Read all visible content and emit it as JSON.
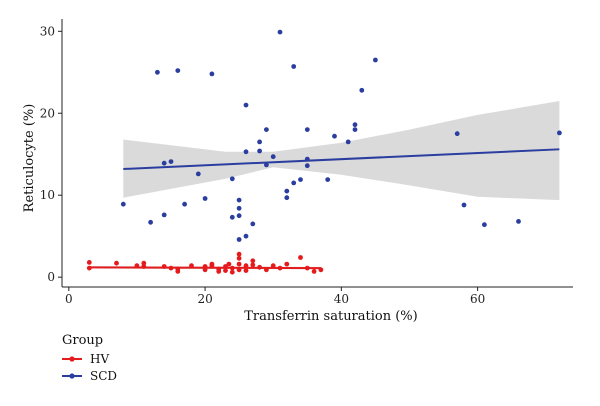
{
  "chart_data": {
    "type": "scatter",
    "xlabel": "Transferrin saturation (%)",
    "ylabel": "Reticulocyte (%)",
    "xlim": [
      -1,
      74
    ],
    "ylim": [
      -1.2,
      31.5
    ],
    "xticks": [
      0,
      20,
      40,
      60
    ],
    "yticks": [
      0,
      10,
      20,
      30
    ],
    "x_tick_labels": [
      "0",
      "20",
      "40",
      "60"
    ],
    "y_tick_labels": [
      "0",
      "10",
      "20",
      "30"
    ],
    "legend": {
      "title": "Group",
      "placement": "bottom-left"
    },
    "series": [
      {
        "name": "HV",
        "color": "#e41a1c",
        "points": [
          [
            3,
            1.1
          ],
          [
            3,
            1.8
          ],
          [
            7,
            1.7
          ],
          [
            10,
            1.4
          ],
          [
            11,
            1.3
          ],
          [
            11,
            1.7
          ],
          [
            14,
            1.3
          ],
          [
            15,
            1.1
          ],
          [
            16,
            0.7
          ],
          [
            16,
            1.0
          ],
          [
            18,
            1.4
          ],
          [
            20,
            1.3
          ],
          [
            20,
            0.9
          ],
          [
            21,
            1.4
          ],
          [
            21,
            1.6
          ],
          [
            22,
            1.0
          ],
          [
            22,
            0.7
          ],
          [
            23,
            1.3
          ],
          [
            23,
            0.8
          ],
          [
            23.5,
            1.6
          ],
          [
            24,
            1.1
          ],
          [
            24,
            0.6
          ],
          [
            25,
            0.9
          ],
          [
            25,
            1.6
          ],
          [
            25,
            2.3
          ],
          [
            25,
            2.8
          ],
          [
            26,
            1.4
          ],
          [
            26,
            0.8
          ],
          [
            27,
            2.0
          ],
          [
            27,
            1.5
          ],
          [
            28,
            1.2
          ],
          [
            29,
            0.9
          ],
          [
            30,
            1.4
          ],
          [
            31,
            1.1
          ],
          [
            32,
            1.6
          ],
          [
            34,
            2.4
          ],
          [
            35,
            1.1
          ],
          [
            36,
            0.7
          ],
          [
            37,
            0.9
          ]
        ],
        "fit": {
          "x_range": [
            3,
            37
          ],
          "y_start": 1.2,
          "y_end": 1.1,
          "ci": 0.15
        }
      },
      {
        "name": "SCD",
        "color": "#2b3ea0",
        "points": [
          [
            8,
            8.9
          ],
          [
            12,
            6.7
          ],
          [
            13,
            25.0
          ],
          [
            14,
            13.9
          ],
          [
            14,
            7.6
          ],
          [
            15,
            14.1
          ],
          [
            16,
            25.2
          ],
          [
            17,
            8.9
          ],
          [
            19,
            12.6
          ],
          [
            20,
            9.6
          ],
          [
            21,
            24.8
          ],
          [
            24,
            12.0
          ],
          [
            24,
            7.3
          ],
          [
            25,
            9.4
          ],
          [
            25,
            8.4
          ],
          [
            25,
            7.5
          ],
          [
            25,
            4.6
          ],
          [
            26,
            21.0
          ],
          [
            26,
            15.3
          ],
          [
            26,
            5.0
          ],
          [
            27,
            6.5
          ],
          [
            28,
            16.5
          ],
          [
            28,
            15.4
          ],
          [
            29,
            18.0
          ],
          [
            29,
            13.7
          ],
          [
            30,
            14.7
          ],
          [
            31,
            29.9
          ],
          [
            32,
            10.5
          ],
          [
            32,
            9.7
          ],
          [
            33,
            25.7
          ],
          [
            33,
            11.5
          ],
          [
            34,
            11.9
          ],
          [
            35,
            18.0
          ],
          [
            35,
            14.4
          ],
          [
            35,
            13.6
          ],
          [
            38,
            11.9
          ],
          [
            39,
            17.2
          ],
          [
            41,
            16.5
          ],
          [
            42,
            18.6
          ],
          [
            42,
            18.0
          ],
          [
            43,
            22.8
          ],
          [
            45,
            26.5
          ],
          [
            57,
            17.5
          ],
          [
            58,
            8.8
          ],
          [
            61,
            6.4
          ],
          [
            66,
            6.8
          ],
          [
            72,
            17.6
          ]
        ],
        "fit": {
          "x_range": [
            8,
            72
          ],
          "y_start": 13.2,
          "y_end": 15.6,
          "ci_band": [
            [
              8,
              16.8,
              9.7
            ],
            [
              23,
              15.3,
              12.0
            ],
            [
              30,
              15.3,
              13.4
            ],
            [
              40,
              16.4,
              12.5
            ],
            [
              50,
              18.0,
              11.2
            ],
            [
              60,
              19.8,
              9.8
            ],
            [
              72,
              21.5,
              9.4
            ]
          ]
        }
      }
    ]
  }
}
